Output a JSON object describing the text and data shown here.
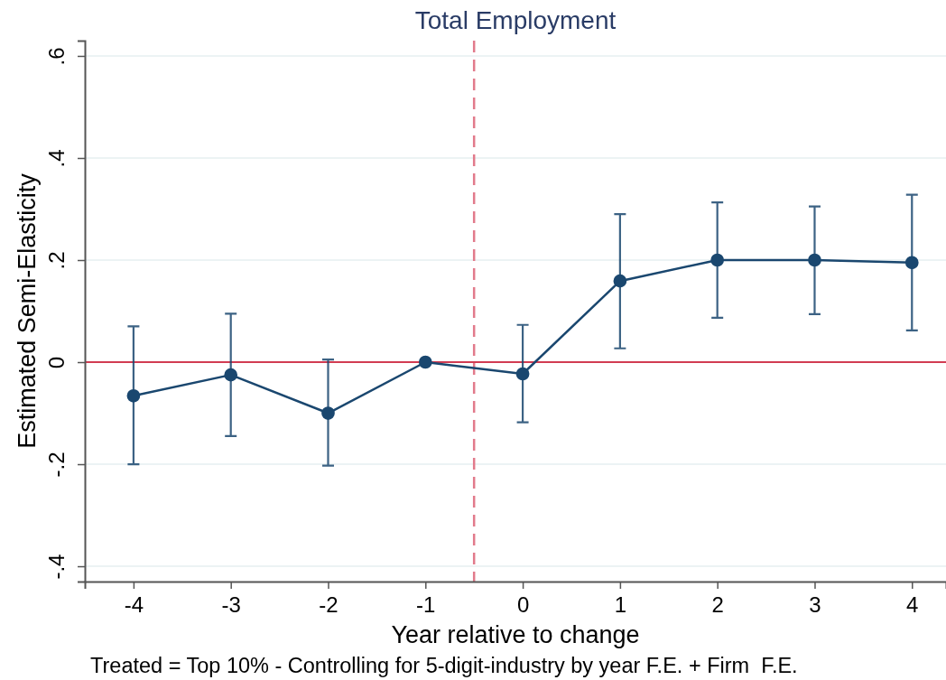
{
  "chart_data": {
    "type": "line",
    "title": "Total Employment",
    "xlabel": "Year relative to change",
    "ylabel": "Estimated Semi-Elasticity",
    "x": [
      -4,
      -3,
      -2,
      -1,
      0,
      1,
      2,
      3,
      4
    ],
    "series": [
      {
        "color": "#1a476f",
        "values": [
          -0.066,
          -0.025,
          -0.1,
          0,
          -0.023,
          0.159,
          0.2,
          0.2,
          0.195
        ],
        "errors": [
          [
            -0.2,
            0.07
          ],
          [
            -0.145,
            0.095
          ],
          [
            -0.203,
            0.005
          ],
          null,
          [
            -0.118,
            0.073
          ],
          [
            0.027,
            0.29
          ],
          [
            0.087,
            0.313
          ],
          [
            0.094,
            0.305
          ],
          [
            0.062,
            0.328
          ]
        ]
      }
    ],
    "xlim": [
      -4.5,
      4.35
    ],
    "ylim": [
      -0.43,
      0.63
    ],
    "xticks": [
      -4,
      -3,
      -2,
      -1,
      0,
      1,
      2,
      3,
      4
    ],
    "yticks": [
      {
        "value": -0.4,
        "label": "-.4"
      },
      {
        "value": -0.2,
        "label": "-.2"
      },
      0,
      {
        "value": 0.2,
        "label": ".2"
      },
      {
        "value": 0.4,
        "label": ".4"
      },
      {
        "value": 0.6,
        "label": ".6"
      }
    ],
    "grid": "y",
    "marker": "circle",
    "line_style": "solid",
    "ref_lines": [
      {
        "axis": "y",
        "value": 0,
        "color": "#d23c52",
        "line_style": "solid"
      },
      {
        "axis": "x",
        "value": -0.5,
        "color": "#e27a8b",
        "line_style": "dashed"
      }
    ],
    "annotations": [
      "Treated = Top 10% - Controlling for 5-digit-industry by year F.E. + Firm  F.E."
    ]
  }
}
